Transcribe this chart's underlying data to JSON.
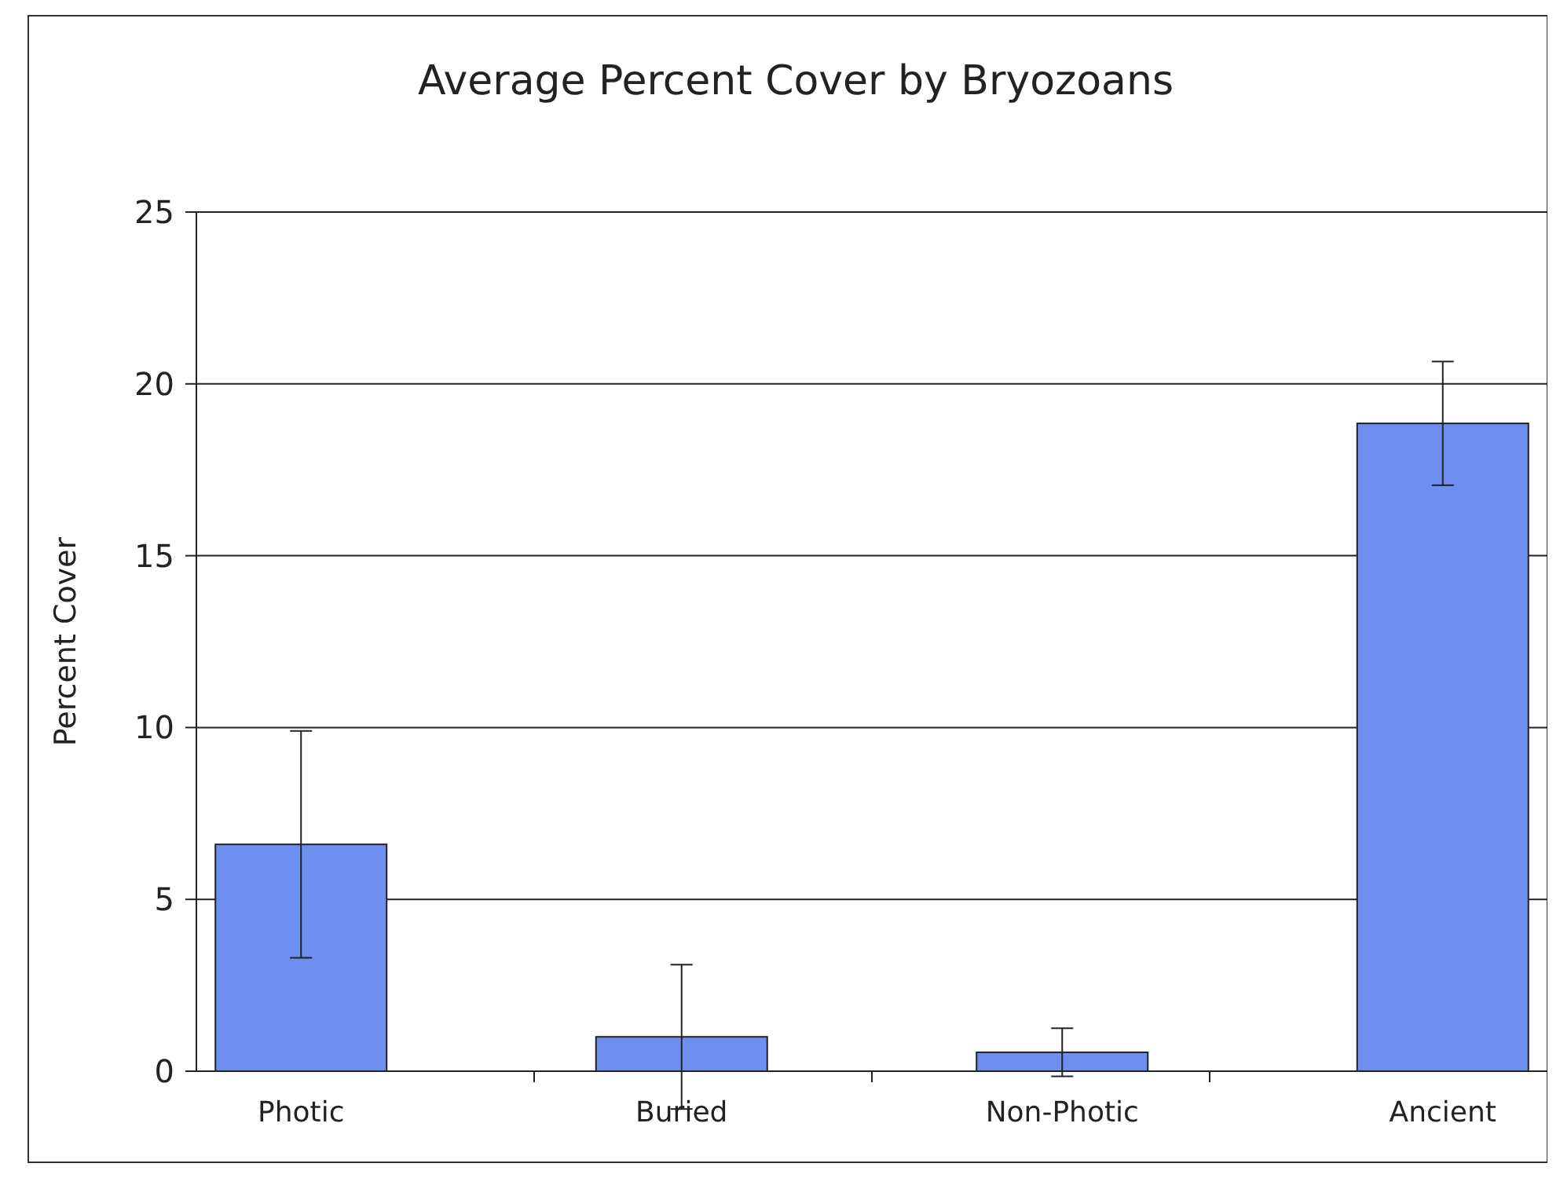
{
  "chart_data": {
    "type": "bar",
    "title": "Average Percent Cover by Bryozoans",
    "ylabel": "Percent Cover",
    "categories": [
      "Photic",
      "Buried",
      "Non-Photic",
      "Ancient"
    ],
    "values": [
      6.6,
      1.0,
      0.55,
      18.85
    ],
    "errors": [
      3.3,
      2.1,
      0.7,
      1.8
    ],
    "color": "#6e8ff0",
    "ylim": [
      0,
      25
    ],
    "yticks": [
      0,
      5,
      10,
      15,
      20,
      25
    ],
    "grid": "y"
  }
}
